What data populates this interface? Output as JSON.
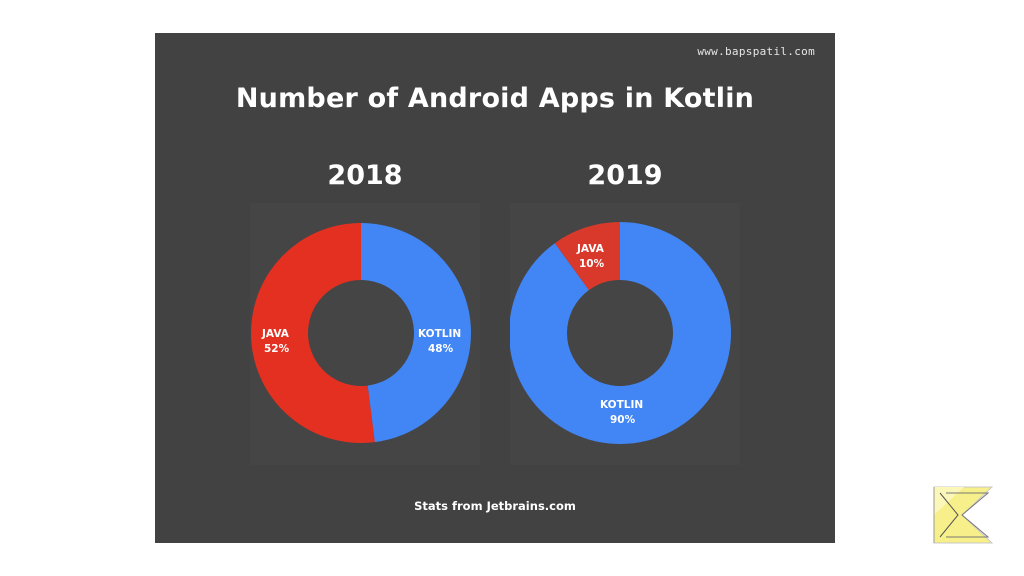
{
  "watermark": "www.bapspatil.com",
  "title": "Number of Android Apps in Kotlin",
  "footer": "Stats from Jetbrains.com",
  "colors": {
    "panel": "#424242",
    "java": "#e43021",
    "kotlin": "#4285f4",
    "hole": "#424242",
    "text": "#ffffff"
  },
  "chart_data": [
    {
      "type": "pie",
      "title": "2018",
      "series": [
        {
          "label": "JAVA",
          "value": 52,
          "display": "52%",
          "color": "#e43021"
        },
        {
          "label": "KOTLIN",
          "value": 48,
          "display": "48%",
          "color": "#4285f4"
        }
      ]
    },
    {
      "type": "pie",
      "title": "2019",
      "series": [
        {
          "label": "JAVA",
          "value": 10,
          "display": "10%",
          "color": "#d9392b"
        },
        {
          "label": "KOTLIN",
          "value": 90,
          "display": "90%",
          "color": "#4285f4"
        }
      ]
    }
  ]
}
